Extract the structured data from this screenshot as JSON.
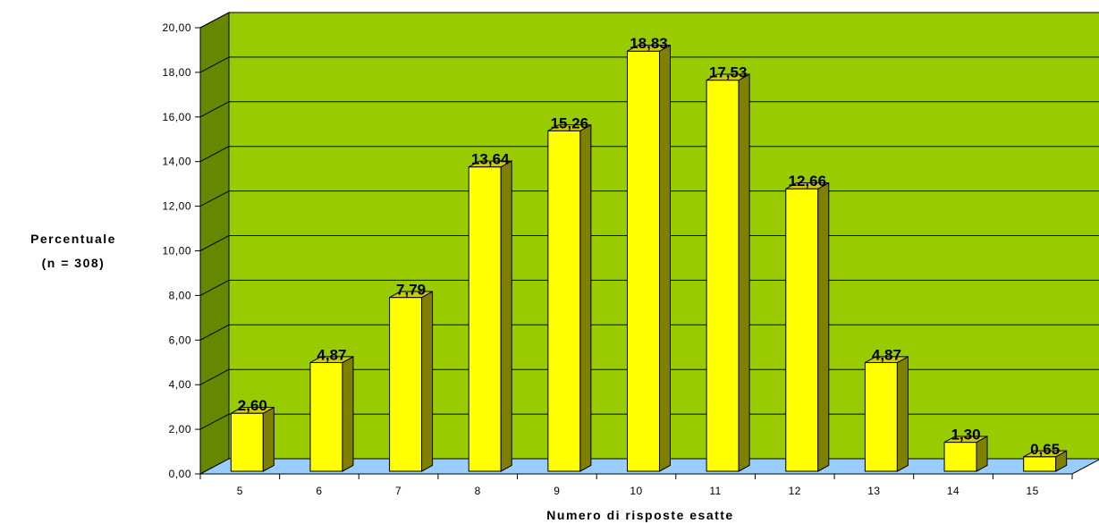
{
  "chart_data": {
    "type": "bar",
    "categories": [
      "5",
      "6",
      "7",
      "8",
      "9",
      "10",
      "11",
      "12",
      "13",
      "14",
      "15"
    ],
    "values": [
      2.6,
      4.87,
      7.79,
      13.64,
      15.26,
      18.83,
      17.53,
      12.66,
      4.87,
      1.3,
      0.65
    ],
    "value_labels": [
      "2,60",
      "4,87",
      "7,79",
      "13,64",
      "15,26",
      "18,83",
      "17,53",
      "12,66",
      "4,87",
      "1,30",
      "0,65"
    ],
    "y_ticks": [
      "0,00",
      "2,00",
      "4,00",
      "6,00",
      "8,00",
      "10,00",
      "12,00",
      "14,00",
      "16,00",
      "18,00",
      "20,00"
    ],
    "ylim": [
      0,
      20
    ],
    "ylabel_lines": [
      "Percentuale",
      "(n = 308)"
    ],
    "xlabel": "Numero di risposte esatte",
    "title": "",
    "grid": true,
    "legend": "none",
    "colors": {
      "wall": "#99cc00",
      "floor": "#99ccff",
      "bar_front": "#ffff00",
      "bar_side": "#808000",
      "bar_top": "#cccc00",
      "side_wall": "#668800",
      "grid": "#000000"
    }
  }
}
